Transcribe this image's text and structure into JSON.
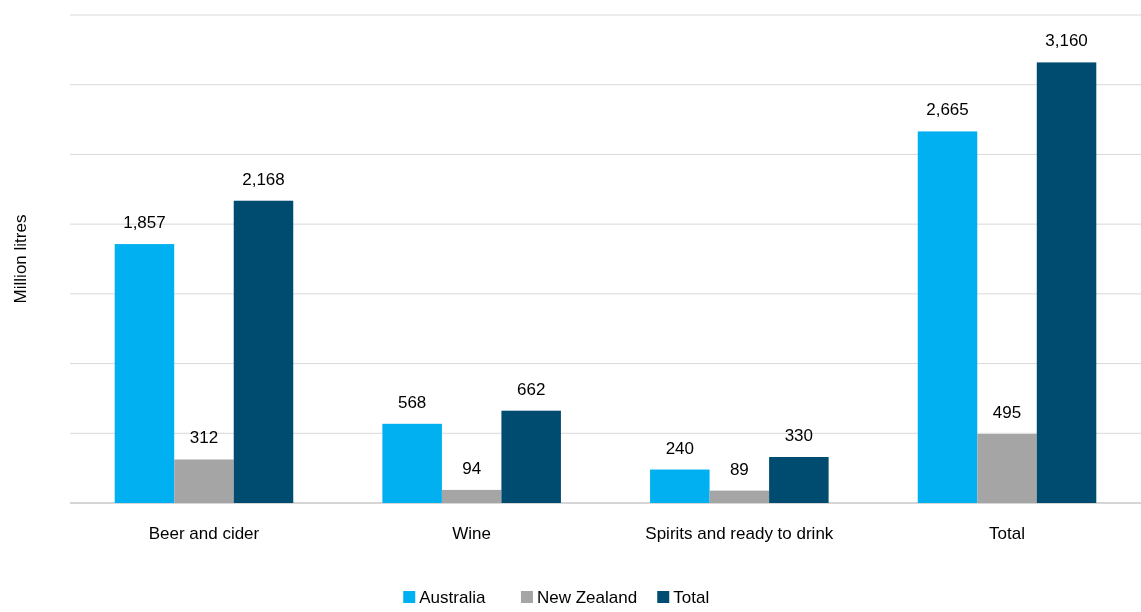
{
  "chart_data": {
    "type": "bar",
    "ylabel": "Million litres",
    "categories": [
      "Beer and cider",
      "Wine",
      "Spirits and ready to drink",
      "Total"
    ],
    "series": [
      {
        "name": "Australia",
        "color": "#00b0f0",
        "values": [
          1857,
          568,
          240,
          2665
        ],
        "value_labels": [
          "1,857",
          "568",
          "240",
          "2,665"
        ]
      },
      {
        "name": "New Zealand",
        "color": "#a5a5a5",
        "values": [
          312,
          94,
          89,
          495
        ],
        "value_labels": [
          "312",
          "94",
          "89",
          "495"
        ]
      },
      {
        "name": "Total",
        "color": "#004c70",
        "values": [
          2168,
          662,
          330,
          3160
        ],
        "value_labels": [
          "2,168",
          "662",
          "330",
          "3,160"
        ]
      }
    ],
    "ylim": [
      0,
      3500
    ],
    "yticks": [
      {
        "value": 0,
        "label": null
      },
      {
        "value": 500,
        "label": null
      },
      {
        "value": 1000,
        "label": null
      },
      {
        "value": 1500,
        "label": null
      },
      {
        "value": 2000,
        "label": null
      },
      {
        "value": 2500,
        "label": null
      },
      {
        "value": 3000,
        "label": null
      },
      {
        "value": 3500,
        "label": null
      }
    ],
    "tick_labels": "x",
    "grid": "y",
    "legend": "bottom"
  }
}
